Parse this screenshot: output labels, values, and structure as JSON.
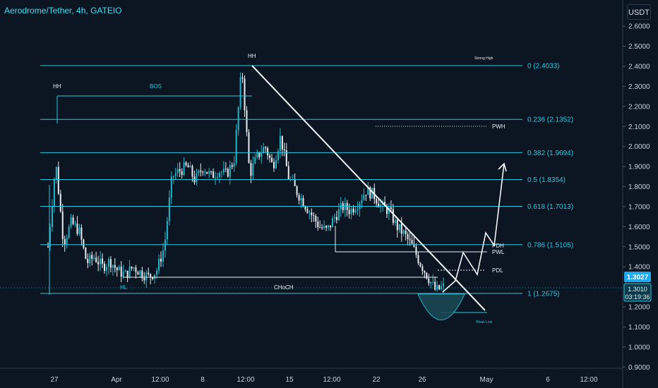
{
  "header": {
    "title": "Aerodrome/Tether, 4h, GATEIO",
    "currency_button": "USDT"
  },
  "chart_data": {
    "type": "candlestick",
    "symbol": "Aerodrome/Tether",
    "interval": "4h",
    "exchange": "GATEIO",
    "y_ticks": [
      "2.6000",
      "2.5000",
      "2.4000",
      "2.3000",
      "2.2000",
      "2.1000",
      "2.0000",
      "1.9000",
      "1.8000",
      "1.7000",
      "1.6000",
      "1.5000",
      "1.4000",
      "1.2000",
      "1.1000",
      "1.0000",
      "0.9000"
    ],
    "ylim": [
      0.9,
      2.7
    ],
    "x_ticks": [
      "27",
      "Apr",
      "12:00",
      "8",
      "12:00",
      "15",
      "12:00",
      "22",
      "26",
      "May",
      "6",
      "12:00"
    ],
    "last_price": "1.3027",
    "current_price": "1.3010",
    "countdown": "03:19:36",
    "fib_levels": [
      {
        "label": "0 (2.4033)",
        "value": 2.4033
      },
      {
        "label": "0.236 (2.1352)",
        "value": 2.1352
      },
      {
        "label": "0.382 (1.9694)",
        "value": 1.9694
      },
      {
        "label": "0.5 (1.8354)",
        "value": 1.8354
      },
      {
        "label": "0.618 (1.7013)",
        "value": 1.7013
      },
      {
        "label": "0.786 (1.5105)",
        "value": 1.5105
      },
      {
        "label": "1 (1.2675)",
        "value": 1.2675
      }
    ],
    "annotations": {
      "hh_left": "HH",
      "hh_top": "HH",
      "bos": "BOS",
      "hl": "HL",
      "choch": "CHoCH",
      "strong_high": "Strong High",
      "weak_low": "Weak Low",
      "pwh": "PWH",
      "pdh": "PDH",
      "pwl": "PWL",
      "pdl": "PDL"
    },
    "close_path": [
      1.5,
      1.92,
      1.52,
      1.62,
      1.58,
      1.42,
      1.45,
      1.4,
      1.43,
      1.38,
      1.36,
      1.4,
      1.37,
      1.35,
      1.38,
      1.5,
      1.85,
      1.88,
      1.9,
      1.83,
      1.9,
      1.85,
      1.88,
      1.86,
      1.93,
      2.4,
      1.86,
      1.95,
      2.0,
      1.9,
      2.05,
      1.85,
      1.78,
      1.72,
      1.66,
      1.6,
      1.58,
      1.65,
      1.7,
      1.68,
      1.72,
      1.78,
      1.76,
      1.7,
      1.68,
      1.6,
      1.56,
      1.5,
      1.42,
      1.35,
      1.28,
      1.3
    ],
    "colors": {
      "up": "#26b5c8",
      "down": "#e8edf2",
      "accent": "#29c7e0",
      "background": "#0b1622"
    }
  }
}
